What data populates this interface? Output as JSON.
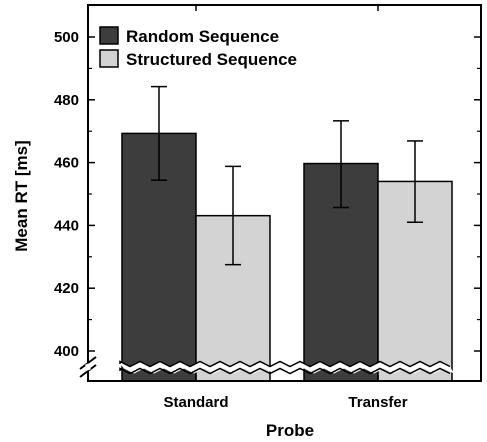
{
  "chart_data": {
    "type": "bar",
    "title": "",
    "xlabel": "Probe",
    "ylabel": "Mean RT [ms]",
    "categories": [
      "Standard",
      "Transfer"
    ],
    "series": [
      {
        "name": "Random Sequence",
        "color": "#3d3d3d",
        "values": [
          469.3,
          459.7
        ],
        "error_low": [
          454.4,
          445.7
        ],
        "error_high": [
          484.2,
          473.3
        ]
      },
      {
        "name": "Structured Sequence",
        "color": "#d3d3d3",
        "values": [
          443.1,
          454.0
        ],
        "error_low": [
          427.5,
          441.0
        ],
        "error_high": [
          458.8,
          466.9
        ]
      }
    ],
    "ylim": [
      395,
      510
    ],
    "y_ticks": [
      400,
      420,
      440,
      460,
      480,
      500
    ],
    "y_minor_step": 10,
    "axis_break": true,
    "grid": false,
    "legend_position": "top-left"
  }
}
